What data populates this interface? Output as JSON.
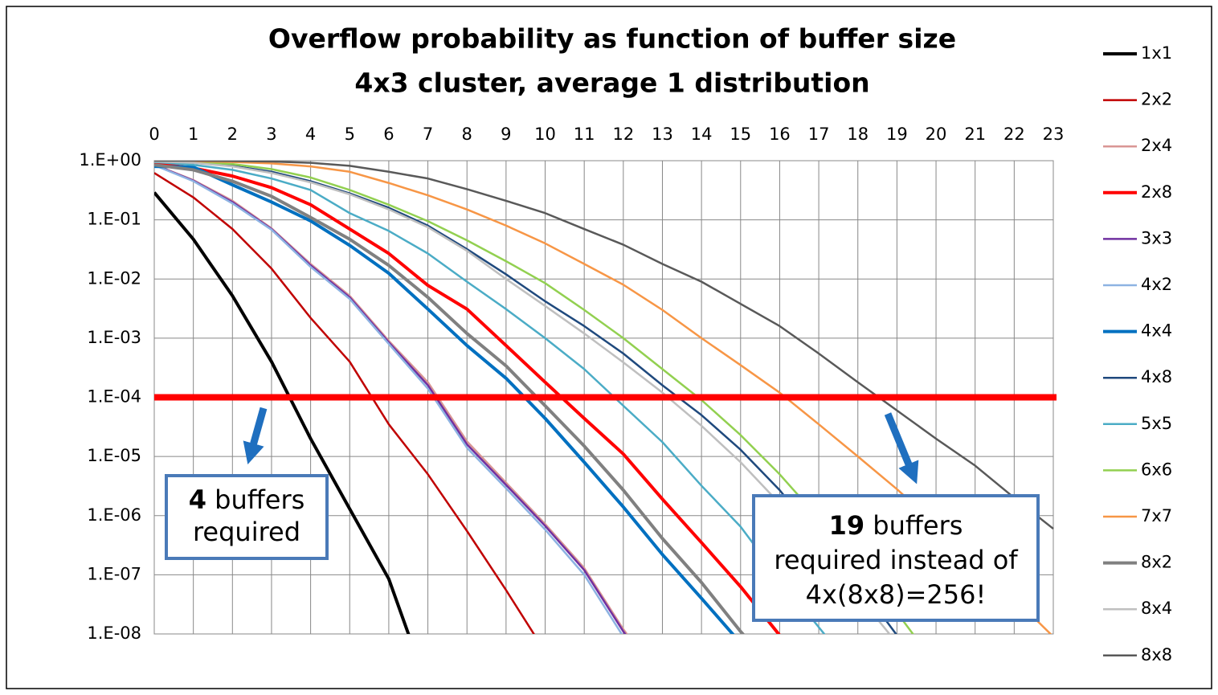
{
  "chart_data": {
    "type": "line",
    "title": [
      "Overflow probability as function of buffer size",
      "4x3 cluster, average 1 distribution"
    ],
    "x": [
      0,
      1,
      2,
      3,
      4,
      5,
      6,
      7,
      8,
      9,
      10,
      11,
      12,
      13,
      14,
      15,
      16,
      17,
      18,
      19,
      20,
      21,
      22,
      23
    ],
    "xlim": [
      0,
      23
    ],
    "xticks": [
      0,
      1,
      2,
      3,
      4,
      5,
      6,
      7,
      8,
      9,
      10,
      11,
      12,
      13,
      14,
      15,
      16,
      17,
      18,
      19,
      20,
      21,
      22,
      23
    ],
    "ylim": [
      1e-08,
      1
    ],
    "yscale": "log",
    "yticks": [
      {
        "value": 1,
        "label": "1.E+00"
      },
      {
        "value": 0.1,
        "label": "1.E-01"
      },
      {
        "value": 0.01,
        "label": "1.E-02"
      },
      {
        "value": 0.001,
        "label": "1.E-03"
      },
      {
        "value": 0.0001,
        "label": "1.E-04"
      },
      {
        "value": 1e-05,
        "label": "1.E-05"
      },
      {
        "value": 1e-06,
        "label": "1.E-06"
      },
      {
        "value": 1e-07,
        "label": "1.E-07"
      },
      {
        "value": 1e-08,
        "label": "1.E-08"
      }
    ],
    "grid": true,
    "legend": "right",
    "threshold": {
      "value": 0.0001,
      "color": "#ff0000"
    },
    "series": [
      {
        "name": "1x1",
        "color": "#000000",
        "width": 4,
        "values": [
          0.29,
          0.047,
          0.0052,
          0.0004,
          2e-05,
          1.3e-06,
          8.5e-08,
          1.2e-09,
          null,
          null,
          null,
          null,
          null,
          null,
          null,
          null,
          null,
          null,
          null,
          null,
          null,
          null,
          null,
          null
        ]
      },
      {
        "name": "2x2",
        "color": "#c00000",
        "width": 2.5,
        "values": [
          0.62,
          0.24,
          0.07,
          0.015,
          0.0022,
          0.0004,
          3.5e-05,
          5e-06,
          5.5e-07,
          5.5e-08,
          5e-09,
          null,
          null,
          null,
          null,
          null,
          null,
          null,
          null,
          null,
          null,
          null,
          null,
          null
        ]
      },
      {
        "name": "2x4",
        "color": "#d99694",
        "width": 2.5,
        "values": [
          0.86,
          0.47,
          0.21,
          0.072,
          0.018,
          0.0052,
          0.0009,
          0.00018,
          1.8e-05,
          3.6e-06,
          7.2e-07,
          1.3e-07,
          1.2e-08,
          1.5e-09,
          null,
          null,
          null,
          null,
          null,
          null,
          null,
          null,
          null,
          null
        ]
      },
      {
        "name": "2x8",
        "color": "#ff0000",
        "width": 4,
        "values": [
          0.9,
          0.75,
          0.55,
          0.35,
          0.18,
          0.07,
          0.027,
          0.0078,
          0.0031,
          0.00075,
          0.00018,
          4.4e-05,
          1.1e-05,
          1.9e-06,
          3.5e-07,
          6.3e-08,
          9.5e-09,
          null,
          null,
          null,
          null,
          null,
          null,
          null
        ]
      },
      {
        "name": "3x3",
        "color": "#7030a0",
        "width": 2.5,
        "values": [
          0.85,
          0.46,
          0.2,
          0.07,
          0.017,
          0.0049,
          0.00085,
          0.00016,
          1.6e-05,
          3.3e-06,
          6.7e-07,
          1.2e-07,
          1.1e-08,
          1.4e-09,
          null,
          null,
          null,
          null,
          null,
          null,
          null,
          null,
          null,
          null
        ]
      },
      {
        "name": "4x2",
        "color": "#8db3e2",
        "width": 2.5,
        "values": [
          0.84,
          0.45,
          0.19,
          0.068,
          0.016,
          0.0046,
          0.0008,
          0.00014,
          1.4e-05,
          2.9e-06,
          5.8e-07,
          1e-07,
          9e-09,
          null,
          null,
          null,
          null,
          null,
          null,
          null,
          null,
          null,
          null,
          null
        ]
      },
      {
        "name": "4x4",
        "color": "#0070c0",
        "width": 4,
        "values": [
          0.8,
          0.78,
          0.39,
          0.2,
          0.096,
          0.037,
          0.0125,
          0.0031,
          0.00075,
          0.00021,
          4.4e-05,
          8e-06,
          1.4e-06,
          2.2e-07,
          4e-08,
          7e-09,
          null,
          null,
          null,
          null,
          null,
          null,
          null,
          null
        ]
      },
      {
        "name": "4x8",
        "color": "#1f497d",
        "width": 2.5,
        "values": [
          0.97,
          0.92,
          0.82,
          0.65,
          0.45,
          0.28,
          0.16,
          0.08,
          0.032,
          0.012,
          0.0042,
          0.0016,
          0.00055,
          0.00016,
          5e-05,
          1.3e-05,
          2.7e-06,
          4.1e-07,
          7.4e-08,
          9.5e-09,
          null,
          null,
          null,
          null
        ]
      },
      {
        "name": "5x5",
        "color": "#4bacc6",
        "width": 2.5,
        "values": [
          0.95,
          0.85,
          0.7,
          0.5,
          0.32,
          0.13,
          0.065,
          0.027,
          0.009,
          0.0031,
          0.001,
          0.0003,
          7.2e-05,
          1.75e-05,
          3.2e-06,
          6.5e-07,
          8.5e-08,
          1.3e-08,
          2e-09,
          null,
          null,
          null,
          null,
          null
        ]
      },
      {
        "name": "6x6",
        "color": "#92d050",
        "width": 2.5,
        "values": [
          0.98,
          0.95,
          0.88,
          0.72,
          0.52,
          0.32,
          0.18,
          0.095,
          0.045,
          0.02,
          0.0085,
          0.003,
          0.001,
          0.0003,
          9e-05,
          2.3e-05,
          5e-06,
          9e-07,
          1.5e-07,
          2.3e-08,
          3e-09,
          null,
          null,
          null
        ]
      },
      {
        "name": "7x7",
        "color": "#f79646",
        "width": 2.5,
        "values": [
          0.99,
          0.98,
          0.95,
          0.9,
          0.8,
          0.65,
          0.42,
          0.26,
          0.15,
          0.08,
          0.04,
          0.018,
          0.008,
          0.003,
          0.001,
          0.00035,
          0.00012,
          3.5e-05,
          1e-05,
          2.8e-06,
          7e-07,
          1.7e-07,
          4e-08,
          9e-09
        ]
      },
      {
        "name": "8x2",
        "color": "#808080",
        "width": 4,
        "values": [
          0.85,
          0.7,
          0.45,
          0.25,
          0.11,
          0.047,
          0.017,
          0.0049,
          0.0012,
          0.00034,
          7.2e-05,
          1.5e-05,
          2.7e-06,
          4.1e-07,
          7.4e-08,
          1.1e-08,
          2e-09,
          null,
          null,
          null,
          null,
          null,
          null,
          null
        ]
      },
      {
        "name": "8x4",
        "color": "#bfbfbf",
        "width": 2.5,
        "values": [
          0.97,
          0.92,
          0.8,
          0.62,
          0.43,
          0.27,
          0.15,
          0.075,
          0.03,
          0.01,
          0.0035,
          0.0012,
          0.00039,
          0.00012,
          3.3e-05,
          8e-06,
          1.6e-06,
          2.5e-07,
          4.5e-08,
          7e-09,
          null,
          null,
          null,
          null
        ]
      },
      {
        "name": "8x8",
        "color": "#595959",
        "width": 2.5,
        "values": [
          1,
          1,
          0.99,
          0.97,
          0.92,
          0.82,
          0.65,
          0.5,
          0.33,
          0.21,
          0.13,
          0.07,
          0.038,
          0.018,
          0.009,
          0.0038,
          0.0016,
          0.00055,
          0.00018,
          6e-05,
          2e-05,
          7e-06,
          2e-06,
          6e-07
        ]
      }
    ],
    "annotations": [
      {
        "bold": "4",
        "text": "buffers",
        "lines": [
          "required"
        ]
      },
      {
        "bold": "19",
        "text": "buffers",
        "lines": [
          "required instead of",
          "4x(8x8)=256!"
        ]
      }
    ]
  }
}
